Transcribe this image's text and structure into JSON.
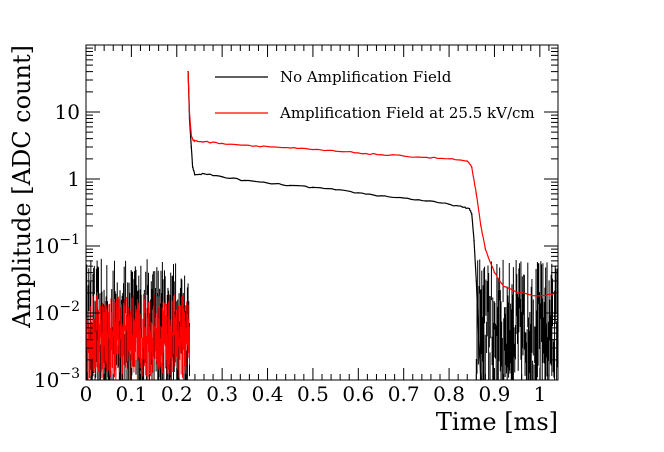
{
  "chart_data": {
    "type": "line",
    "xlabel": "Time [ms]",
    "ylabel": "Amplitude [ADC count]",
    "xlim": [
      0,
      1.04
    ],
    "ylim": [
      0.001,
      100
    ],
    "yscale": "log",
    "x_ticks": [
      0,
      0.1,
      0.2,
      0.3,
      0.4,
      0.5,
      0.6,
      0.7,
      0.8,
      0.9,
      1
    ],
    "x_tick_labels": [
      "0",
      "0.1",
      "0.2",
      "0.3",
      "0.4",
      "0.5",
      "0.6",
      "0.7",
      "0.8",
      "0.9",
      "1"
    ],
    "y_ticks": [
      0.001,
      0.01,
      0.1,
      1,
      10
    ],
    "y_tick_labels": [
      {
        "base": "10",
        "exp": "−3"
      },
      {
        "base": "10",
        "exp": "−2"
      },
      {
        "base": "10",
        "exp": "−1"
      },
      {
        "base": "1",
        "exp": ""
      },
      {
        "base": "10",
        "exp": ""
      }
    ],
    "legend_position": "top-center",
    "grid": false,
    "series": [
      {
        "name": "No Amplification Field",
        "color": "#000000",
        "baseline_noise": {
          "x_range": [
            0,
            0.228
          ],
          "y_range": [
            0.001,
            0.05
          ]
        },
        "x": [
          0.225,
          0.228,
          0.232,
          0.235,
          0.24,
          0.26,
          0.3,
          0.35,
          0.4,
          0.45,
          0.5,
          0.55,
          0.6,
          0.65,
          0.7,
          0.75,
          0.8,
          0.83,
          0.845,
          0.85,
          0.855,
          0.86,
          0.865,
          0.87
        ],
        "y": [
          40,
          8,
          3,
          1.5,
          1.15,
          1.2,
          1.08,
          0.95,
          0.87,
          0.8,
          0.75,
          0.69,
          0.62,
          0.56,
          0.52,
          0.47,
          0.42,
          0.38,
          0.36,
          0.3,
          0.12,
          0.03,
          0.005,
          0.001
        ],
        "tail_noise": {
          "x_range": [
            0.86,
            1.04
          ],
          "y_range": [
            0.001,
            0.05
          ]
        }
      },
      {
        "name": "Amplification Field at 25.5 kV/cm",
        "color": "#ff0000",
        "baseline_noise": {
          "x_range": [
            0,
            0.228
          ],
          "y_range": [
            0.002,
            0.015
          ]
        },
        "x": [
          0.225,
          0.228,
          0.232,
          0.236,
          0.24,
          0.26,
          0.3,
          0.35,
          0.4,
          0.45,
          0.5,
          0.55,
          0.6,
          0.65,
          0.7,
          0.75,
          0.8,
          0.84,
          0.85,
          0.86,
          0.87,
          0.88,
          0.9,
          0.92,
          0.95,
          1.0,
          1.04
        ],
        "y": [
          40,
          10,
          4.5,
          3.8,
          3.7,
          3.6,
          3.4,
          3.2,
          3.05,
          2.9,
          2.75,
          2.6,
          2.45,
          2.3,
          2.2,
          2.1,
          2.0,
          1.85,
          1.5,
          0.6,
          0.2,
          0.09,
          0.04,
          0.025,
          0.02,
          0.018,
          0.02
        ]
      }
    ]
  }
}
